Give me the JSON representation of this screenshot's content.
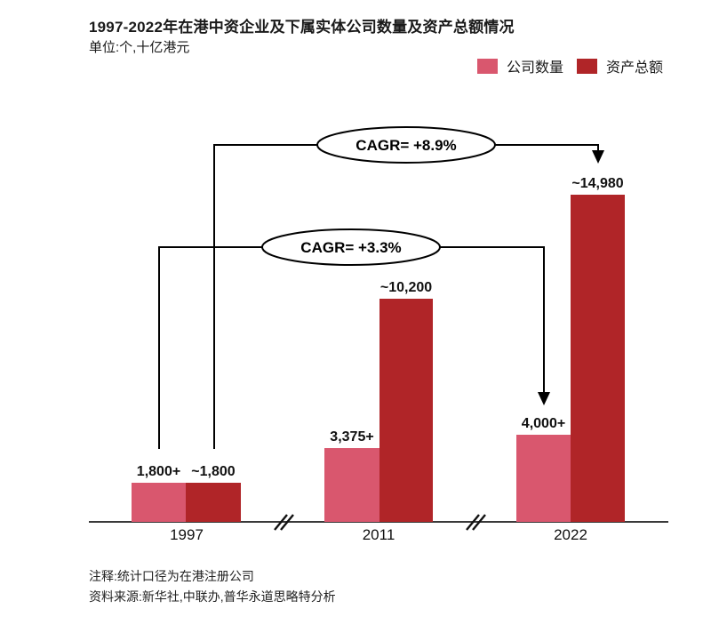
{
  "header": {
    "title": "1997-2022年在港中资企业及下属实体公司数量及资产总额情况",
    "unit": "单位:个,十亿港元"
  },
  "legend": {
    "items": [
      {
        "label": "公司数量",
        "color_key": "companies"
      },
      {
        "label": "资产总额",
        "color_key": "assets"
      }
    ]
  },
  "colors": {
    "companies": "#D9576E",
    "assets": "#B02528"
  },
  "chart_data": {
    "type": "bar",
    "categories": [
      "1997",
      "2011",
      "2022"
    ],
    "series": [
      {
        "name": "公司数量",
        "color_key": "companies",
        "values": [
          1800,
          3375,
          4000
        ],
        "labels": [
          "1,800+",
          "3,375+",
          "4,000+"
        ]
      },
      {
        "name": "资产总额",
        "color_key": "assets",
        "values": [
          1800,
          10200,
          14980
        ],
        "labels": [
          "~1,800",
          "~10,200",
          "~14,980"
        ]
      }
    ],
    "annotations": [
      {
        "label": "CAGR= +3.3%",
        "applies_to": "公司数量",
        "from": "1997",
        "to": "2022"
      },
      {
        "label": "CAGR= +8.9%",
        "applies_to": "资产总额",
        "from": "1997",
        "to": "2022"
      }
    ],
    "axis_breaks": true,
    "xlabel": "",
    "ylabel": "",
    "legend_position": "top-right",
    "grid": false
  },
  "footnotes": {
    "note": "注释:统计口径为在港注册公司",
    "source": "资料来源:新华社,中联办,普华永道思略特分析"
  }
}
